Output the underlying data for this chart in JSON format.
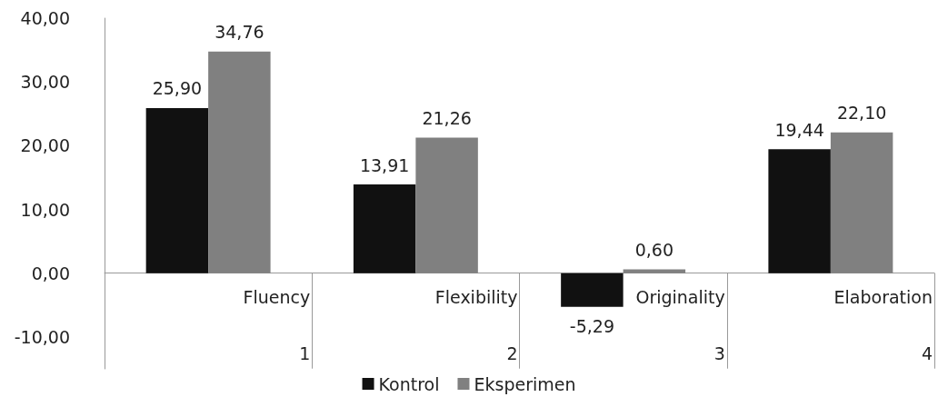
{
  "chart_data": {
    "type": "bar",
    "categories": [
      "Fluency",
      "Flexibility",
      "Originality",
      "Elaboration"
    ],
    "series": [
      {
        "name": "Kontrol",
        "color": "#111111",
        "values": [
          25.9,
          13.91,
          -5.29,
          19.44
        ],
        "value_labels": [
          "25,90",
          "13,91",
          "-5,29",
          "19,44"
        ]
      },
      {
        "name": "Eksperimen",
        "color": "#808080",
        "values": [
          34.76,
          21.26,
          0.6,
          22.1
        ],
        "value_labels": [
          "34,76",
          "21,26",
          "0,60",
          "22,10"
        ]
      }
    ],
    "ylim": [
      -15,
      40
    ],
    "yticks": [
      {
        "value": -10,
        "label": "-10,00"
      },
      {
        "value": 0,
        "label": "0,00"
      },
      {
        "value": 10,
        "label": "10,00"
      },
      {
        "value": 20,
        "label": "20,00"
      },
      {
        "value": 30,
        "label": "30,00"
      },
      {
        "value": 40,
        "label": "40,00"
      }
    ],
    "annotations": [
      "1",
      "2",
      "3",
      "4"
    ],
    "grid": false,
    "legend": "bottom"
  }
}
